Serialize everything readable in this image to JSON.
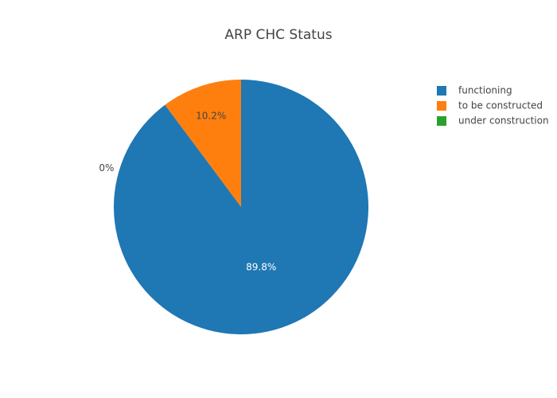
{
  "chart_data": {
    "type": "pie",
    "title": "ARP CHC Status",
    "categories": [
      "functioning",
      "to be constructed",
      "under construction"
    ],
    "values": [
      89.8,
      10.2,
      0
    ],
    "value_labels": [
      "89.8%",
      "10.2%",
      "0%"
    ],
    "colors": [
      "#1f77b4",
      "#ff7f0e",
      "#2ca02c"
    ],
    "legend": "top-right"
  }
}
